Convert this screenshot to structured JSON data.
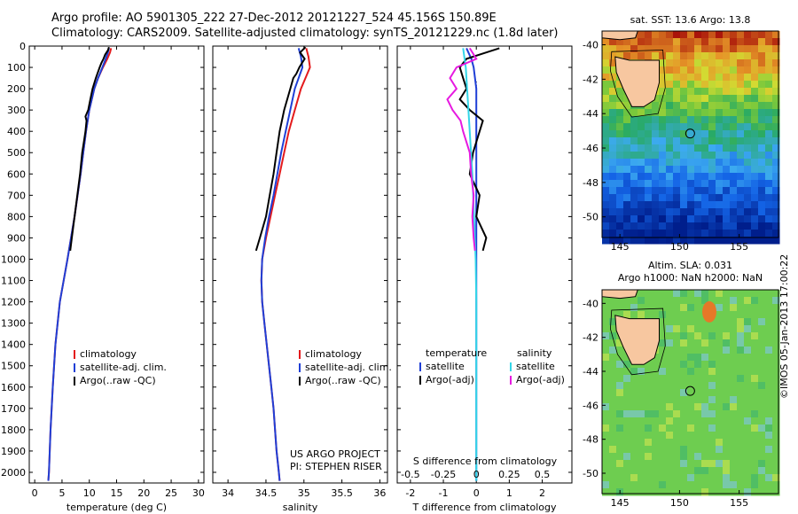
{
  "header": {
    "line1": "Argo profile: AO 5901305_222 27-Dec-2012 20121227_524 45.156S 150.89E",
    "line2": "Climatology: CARS2009. Satellite-adjusted climatology: synTS_20121229.nc (1.8d later)"
  },
  "chart_data": [
    {
      "type": "line",
      "xlabel": "temperature (deg C)",
      "ylabel": "",
      "xlim": [
        -1,
        31
      ],
      "ylim": [
        2050,
        0
      ],
      "y_reversed": true,
      "xticks": [
        0,
        5,
        10,
        15,
        20,
        25,
        30
      ],
      "yticks": [
        0,
        100,
        200,
        300,
        400,
        500,
        600,
        700,
        800,
        900,
        1000,
        1100,
        1200,
        1300,
        1400,
        1500,
        1600,
        1700,
        1800,
        1900,
        2000
      ],
      "legend": "center",
      "legend_entries": [
        "climatology",
        "satellite-adj. clim.",
        "Argo(..raw -QC)"
      ],
      "series": [
        {
          "name": "climatology",
          "color": "#e41a1c",
          "depth": [
            10,
            30,
            60,
            100,
            150,
            200,
            300,
            400,
            500,
            600,
            800,
            1000,
            1200,
            1400,
            1600,
            1800,
            2000,
            2040
          ],
          "values": [
            14.0,
            13.8,
            13.3,
            12.5,
            11.6,
            10.9,
            10.0,
            9.4,
            8.9,
            8.4,
            7.3,
            6.0,
            4.6,
            3.8,
            3.3,
            2.9,
            2.6,
            2.5
          ]
        },
        {
          "name": "satellite-adj. clim.",
          "color": "#1f3fd6",
          "depth": [
            10,
            30,
            60,
            100,
            150,
            200,
            300,
            400,
            500,
            600,
            800,
            1000,
            1200,
            1400,
            1600,
            1800,
            2000,
            2040
          ],
          "values": [
            13.6,
            13.4,
            13.0,
            12.4,
            11.6,
            10.9,
            10.0,
            9.4,
            8.9,
            8.4,
            7.3,
            6.0,
            4.6,
            3.8,
            3.3,
            2.9,
            2.6,
            2.5
          ]
        },
        {
          "name": "Argo(..raw -QC)",
          "color": "#000000",
          "depth": [
            5,
            20,
            40,
            60,
            80,
            100,
            150,
            200,
            250,
            300,
            330,
            350,
            400,
            450,
            500,
            600,
            700,
            800,
            900,
            960
          ],
          "values": [
            13.6,
            13.4,
            12.9,
            12.6,
            12.2,
            11.9,
            11.2,
            10.6,
            10.2,
            9.8,
            9.3,
            9.5,
            9.3,
            9.0,
            8.7,
            8.3,
            7.8,
            7.3,
            6.8,
            6.5
          ]
        }
      ]
    },
    {
      "type": "line",
      "xlabel": "salinity",
      "ylabel": "",
      "xlim": [
        33.8,
        36.1
      ],
      "ylim": [
        2050,
        0
      ],
      "y_reversed": true,
      "xticks": [
        34,
        34.5,
        35,
        35.5,
        36
      ],
      "legend": "center",
      "legend_entries": [
        "climatology",
        "satellite-adj. clim.",
        "Argo(..raw -QC)"
      ],
      "annotation": [
        "US ARGO PROJECT",
        "PI: STEPHEN RISER"
      ],
      "series": [
        {
          "name": "climatology",
          "color": "#e41a1c",
          "depth": [
            10,
            50,
            100,
            150,
            200,
            300,
            400,
            500,
            600,
            700,
            800,
            900,
            1000,
            1100,
            1200,
            1300,
            1400,
            1500,
            1600,
            1700,
            1800,
            1900,
            2000,
            2040
          ],
          "values": [
            35.03,
            35.06,
            35.08,
            35.02,
            34.96,
            34.88,
            34.8,
            34.74,
            34.68,
            34.62,
            34.56,
            34.5,
            34.45,
            34.44,
            34.45,
            34.48,
            34.51,
            34.54,
            34.57,
            34.6,
            34.62,
            34.64,
            34.67,
            34.68
          ]
        },
        {
          "name": "satellite-adj. clim.",
          "color": "#1f3fd6",
          "depth": [
            10,
            50,
            100,
            150,
            200,
            300,
            400,
            500,
            600,
            700,
            800,
            900,
            1000,
            1100,
            1200,
            1300,
            1400,
            1500,
            1600,
            1700,
            1800,
            1900,
            2000,
            2040
          ],
          "values": [
            34.93,
            34.96,
            34.98,
            34.93,
            34.88,
            34.82,
            34.76,
            34.7,
            34.65,
            34.6,
            34.54,
            34.49,
            34.45,
            34.44,
            34.45,
            34.48,
            34.51,
            34.54,
            34.57,
            34.6,
            34.62,
            34.64,
            34.67,
            34.68
          ]
        },
        {
          "name": "Argo(..raw -QC)",
          "color": "#000000",
          "depth": [
            5,
            30,
            60,
            100,
            130,
            150,
            200,
            300,
            400,
            500,
            600,
            700,
            800,
            900,
            960
          ],
          "values": [
            35.02,
            34.95,
            35.01,
            34.94,
            34.9,
            34.86,
            34.82,
            34.74,
            34.68,
            34.64,
            34.6,
            34.55,
            34.5,
            34.42,
            34.37
          ]
        }
      ]
    },
    {
      "type": "line",
      "xlabel": "T difference from climatology",
      "xlabel_secondary": "S difference from climatology",
      "xlim": [
        -2.4,
        2.9
      ],
      "ylim": [
        2050,
        0
      ],
      "y_reversed": true,
      "xticks": [
        -2,
        -1,
        0,
        1,
        2
      ],
      "xticks_secondary": [
        -0.5,
        -0.25,
        0,
        0.25,
        0.5
      ],
      "legend": "center",
      "legend_groups": [
        "temperature",
        "salinity"
      ],
      "legend_entries": [
        "satellite",
        "Argo(-adj)",
        "satellite",
        "Argo(-adj)"
      ],
      "series": [
        {
          "name": "temperature satellite",
          "color": "#1f3fd6",
          "depth": [
            10,
            60,
            100,
            200,
            400,
            600,
            800,
            1000,
            1200,
            1500,
            2040
          ],
          "values": [
            -0.3,
            -0.15,
            -0.08,
            0,
            0,
            0,
            0,
            0,
            0,
            0,
            0
          ]
        },
        {
          "name": "temperature Argo(-adj)",
          "color": "#000000",
          "depth": [
            10,
            30,
            60,
            100,
            150,
            200,
            250,
            300,
            350,
            400,
            500,
            600,
            700,
            800,
            900,
            960
          ],
          "values": [
            0.7,
            0.3,
            -0.3,
            -0.5,
            -0.4,
            -0.3,
            -0.5,
            -0.2,
            0.2,
            0.1,
            -0.1,
            -0.2,
            0.1,
            0.0,
            0.3,
            0.2
          ]
        },
        {
          "name": "salinity satellite",
          "color": "#33d6e8",
          "depth": [
            10,
            100,
            300,
            600,
            1000,
            1200,
            2040
          ],
          "values": [
            -0.1,
            -0.08,
            -0.06,
            -0.03,
            -0.005,
            0,
            0
          ]
        },
        {
          "name": "salinity Argo(-adj)",
          "color": "#e61ae0",
          "depth": [
            10,
            60,
            100,
            150,
            200,
            250,
            300,
            350,
            400,
            500,
            600,
            700,
            800,
            900,
            960
          ],
          "values": [
            -0.05,
            0.0,
            -0.15,
            -0.2,
            -0.15,
            -0.22,
            -0.18,
            -0.12,
            -0.1,
            -0.05,
            -0.04,
            -0.02,
            -0.03,
            -0.02,
            -0.01
          ]
        }
      ]
    },
    {
      "type": "heatmap",
      "title": "sat. SST: 13.6 Argo: 13.8",
      "xlim": [
        143.5,
        158.3
      ],
      "ylim": [
        -51.2,
        -39.2
      ],
      "xticks": [
        145,
        150,
        155
      ],
      "yticks": [
        -40,
        -42,
        -44,
        -46,
        -48,
        -50
      ],
      "marker": {
        "lon": 150.89,
        "lat": -45.156
      }
    },
    {
      "type": "heatmap",
      "title": "Altim. SLA: 0.031",
      "subtitle": "Argo h1000: NaN h2000: NaN",
      "xlim": [
        143.5,
        158.3
      ],
      "ylim": [
        -51.2,
        -39.2
      ],
      "xticks": [
        145,
        150,
        155
      ],
      "yticks": [
        -40,
        -42,
        -44,
        -46,
        -48,
        -50
      ],
      "marker": {
        "lon": 150.89,
        "lat": -45.156
      }
    }
  ],
  "footer": {
    "stamp": "©IMOS 05-Jan-2013 17:00:22"
  }
}
